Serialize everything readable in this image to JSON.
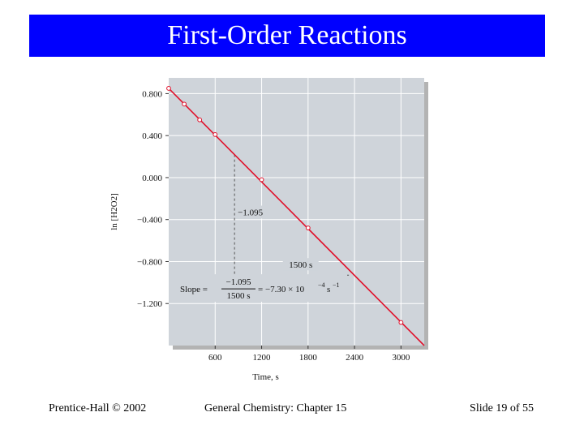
{
  "slide": {
    "title": "First-Order Reactions",
    "title_bar_color": "#0000ff",
    "footer_left": "Prentice-Hall © 2002",
    "footer_center": "General Chemistry: Chapter 15",
    "footer_right": "Slide 19 of 55"
  },
  "chart_data": {
    "type": "line",
    "title": "",
    "xlabel": "Time, s",
    "ylabel": "ln [H2O2]",
    "xlim": [
      0,
      3300
    ],
    "ylim": [
      -1.6,
      0.95
    ],
    "grid": true,
    "background_color": "#cfd4da",
    "line_color": "#e0102a",
    "x_ticks": [
      600,
      1200,
      1800,
      2400,
      3000
    ],
    "x_tick_labels": [
      "600",
      "1200",
      "1800",
      "2400",
      "3000"
    ],
    "y_ticks": [
      0.8,
      0.4,
      0.0,
      -0.4,
      -0.8,
      -1.2
    ],
    "y_tick_labels": [
      "0.800",
      "0.400",
      "0.000",
      "−0.400",
      "−0.800",
      "−1.200"
    ],
    "series": [
      {
        "x": [
          0,
          200,
          400,
          600,
          1200,
          1800,
          3000
        ],
        "y": [
          0.85,
          0.7,
          0.55,
          0.41,
          -0.02,
          -0.48,
          -1.38
        ]
      }
    ],
    "fit_line": {
      "x0": 0,
      "y0": 0.85,
      "x1": 3300,
      "y1": -1.6
    },
    "annotations": {
      "rise_x": 850,
      "run_y": -0.93,
      "run_x_end": 2350,
      "rise_label": "−1.095",
      "run_label": "1500 s",
      "slope_label": "Slope =",
      "slope_num": "−1.095",
      "slope_den": "1500 s",
      "slope_value": "= −7.30 × 10",
      "slope_exp": "−4",
      "slope_unit": "s",
      "slope_unit_exp": "−1"
    }
  }
}
